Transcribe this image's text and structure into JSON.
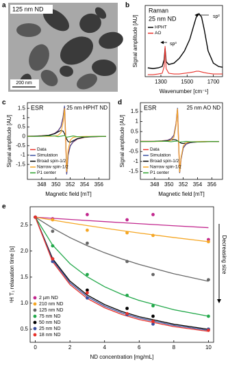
{
  "chart_data": [
    {
      "type": "image",
      "panel": "a",
      "title": "125 nm ND",
      "scale_bar": "200 nm"
    },
    {
      "type": "line",
      "panel": "b",
      "title": "Raman",
      "subtitle": "25 nm ND",
      "xlabel": "Wavenumber [cm⁻¹]",
      "ylabel": "Signal amplitude [AU]",
      "x": [
        1200,
        1240,
        1280,
        1310,
        1325,
        1332,
        1340,
        1360,
        1400,
        1440,
        1480,
        1520,
        1550,
        1570,
        1590,
        1610,
        1630,
        1660,
        1700,
        1740,
        1770
      ],
      "series": [
        {
          "name": "HPHT",
          "color": "#000000",
          "values": [
            0.13,
            0.12,
            0.13,
            0.15,
            0.25,
            0.42,
            0.22,
            0.18,
            0.2,
            0.27,
            0.38,
            0.55,
            0.75,
            0.88,
            0.93,
            0.88,
            0.7,
            0.38,
            0.2,
            0.15,
            0.14
          ]
        },
        {
          "name": "AO",
          "color": "#e8312a",
          "values": [
            0.03,
            0.03,
            0.04,
            0.05,
            0.15,
            0.45,
            0.12,
            0.05,
            0.04,
            0.04,
            0.05,
            0.06,
            0.07,
            0.08,
            0.08,
            0.07,
            0.06,
            0.05,
            0.04,
            0.04,
            0.04
          ]
        }
      ],
      "xlim": [
        1180,
        1770
      ],
      "ylim": [
        0,
        1.05
      ],
      "xticks": [
        1300,
        1500,
        1700
      ],
      "annotations": [
        "sp²",
        "sp³"
      ],
      "legend": "upper left"
    },
    {
      "type": "line",
      "panel": "c",
      "title": "ESR",
      "subtitle": "25 nm HPHT ND",
      "xlabel": "Magnetic field [mT]",
      "ylabel": "Signal amplitude [AU]",
      "x": [
        346,
        347,
        348,
        349,
        349.8,
        350.3,
        350.7,
        351,
        351.2,
        351.35,
        351.5,
        351.7,
        352,
        352.4,
        353,
        354,
        355,
        356,
        357
      ],
      "series": [
        {
          "name": "Data",
          "color": "#e8312a",
          "values": [
            0.01,
            0.01,
            0.03,
            0.06,
            0.15,
            0.3,
            0.52,
            1.02,
            1.6,
            0.02,
            -2.0,
            -1.0,
            -0.5,
            -0.3,
            -0.14,
            -0.05,
            -0.02,
            -0.01,
            0
          ]
        },
        {
          "name": "Simulation",
          "color": "#3a4fa0",
          "values": [
            0.006,
            0.012,
            0.024,
            0.06,
            0.152,
            0.294,
            0.52,
            1.02,
            1.64,
            0,
            -2.04,
            -1.02,
            -0.52,
            -0.294,
            -0.134,
            -0.045,
            -0.018,
            -0.009,
            -0.005
          ]
        },
        {
          "name": "Broad spin-1/2",
          "color": "#000000",
          "values": [
            0.006,
            0.011,
            0.022,
            0.055,
            0.134,
            0.238,
            0.32,
            0.278,
            0.143,
            0,
            -0.143,
            -0.278,
            -0.32,
            -0.238,
            -0.119,
            -0.041,
            -0.018,
            -0.009,
            -0.005
          ]
        },
        {
          "name": "Narrow spin-1/2",
          "color": "#f5a623",
          "values": [
            0,
            0.001,
            0.002,
            0.005,
            0.018,
            0.056,
            0.2,
            0.74,
            1.5,
            0,
            -1.9,
            -0.74,
            -0.2,
            -0.056,
            -0.015,
            -0.004,
            0,
            0,
            0
          ]
        },
        {
          "name": "P1 center",
          "color": "#2ca02c",
          "values": [
            0,
            0,
            0.01,
            0.03,
            0.02,
            -0.02,
            0.01,
            0.03,
            0.05,
            0,
            -0.05,
            -0.03,
            -0.01,
            0.02,
            -0.02,
            -0.03,
            -0.01,
            0,
            0
          ]
        }
      ],
      "xlim": [
        346,
        357.5
      ],
      "ylim": [
        -2.3,
        1.8
      ],
      "xticks": [
        348,
        350,
        352,
        354,
        356
      ],
      "yticks": [
        -1.5,
        -1,
        -0.5,
        0,
        0.5,
        1,
        1.5
      ],
      "legend": "lower left"
    },
    {
      "type": "line",
      "panel": "d",
      "title": "ESR",
      "subtitle": "25 nm AO ND",
      "xlabel": "Magnetic field [mT]",
      "ylabel": "Signal amplitude [AU]",
      "x": [
        346,
        347,
        348,
        349,
        349.8,
        350.3,
        350.7,
        351,
        351.2,
        351.35,
        351.5,
        351.7,
        352,
        352.4,
        353,
        354,
        355,
        356,
        357
      ],
      "series": [
        {
          "name": "Data",
          "color": "#e8312a",
          "values": [
            0.01,
            0.01,
            0.01,
            0.03,
            0.06,
            0.14,
            0.32,
            0.9,
            1.66,
            0.02,
            -1.55,
            -0.86,
            -0.32,
            -0.13,
            -0.05,
            -0.02,
            -0.01,
            0,
            0
          ]
        },
        {
          "name": "Simulation",
          "color": "#3a4fa0",
          "values": [
            0.002,
            0.004,
            0.009,
            0.023,
            0.06,
            0.13,
            0.32,
            0.9,
            1.69,
            0,
            -1.59,
            -0.88,
            -0.32,
            -0.13,
            -0.053,
            -0.016,
            -0.005,
            -0.003,
            -0.002
          ]
        },
        {
          "name": "Broad spin-1/2",
          "color": "#000000",
          "values": [
            0.002,
            0.004,
            0.007,
            0.017,
            0.04,
            0.07,
            0.1,
            0.08,
            0.04,
            0,
            -0.04,
            -0.08,
            -0.1,
            -0.07,
            -0.036,
            -0.012,
            -0.005,
            -0.003,
            -0.002
          ]
        },
        {
          "name": "Narrow spin-1/2",
          "color": "#f5a623",
          "values": [
            0,
            0,
            0.002,
            0.006,
            0.02,
            0.06,
            0.22,
            0.82,
            1.65,
            0,
            -1.55,
            -0.8,
            -0.22,
            -0.06,
            -0.017,
            -0.004,
            0,
            0,
            0
          ]
        },
        {
          "name": "P1 center",
          "color": "#2ca02c",
          "values": [
            0,
            0,
            0.01,
            0.02,
            0.01,
            -0.01,
            0.01,
            0.02,
            0.03,
            0,
            -0.03,
            -0.02,
            -0.01,
            0.01,
            -0.01,
            -0.02,
            -0.01,
            0,
            0
          ]
        }
      ],
      "xlim": [
        346,
        357.5
      ],
      "ylim": [
        -1.9,
        1.95
      ],
      "xticks": [
        348,
        350,
        352,
        354,
        356
      ],
      "yticks": [
        -1.5,
        -1,
        -0.5,
        0,
        0.5,
        1,
        1.5
      ],
      "legend": "lower left"
    },
    {
      "type": "scatter",
      "panel": "e",
      "xlabel": "ND concentration [mg/mL]",
      "ylabel": "¹H T₁ relaxation time [s]",
      "x": [
        0,
        1,
        3,
        5.3,
        6.8,
        10
      ],
      "fit_x": [
        0,
        1,
        2,
        3,
        4,
        5,
        6,
        8,
        10
      ],
      "series": [
        {
          "name": "2 µm ND",
          "color": "#c2278e",
          "values": [
            2.65,
            2.62,
            2.7,
            2.6,
            2.7,
            2.22
          ],
          "fit": [
            2.65,
            2.628,
            2.607,
            2.586,
            2.565,
            2.545,
            2.525,
            2.486,
            2.449
          ]
        },
        {
          "name": "210 nm ND",
          "color": "#f5a623",
          "values": [
            2.65,
            2.6,
            2.4,
            2.35,
            2.3,
            2.18
          ],
          "fit": [
            2.65,
            2.594,
            2.54,
            2.489,
            2.44,
            2.392,
            2.346,
            2.26,
            2.18
          ]
        },
        {
          "name": "125 nm ND",
          "color": "#666666",
          "values": [
            2.65,
            2.38,
            2.15,
            1.8,
            1.55,
            1.45
          ],
          "fit": [
            2.65,
            2.44,
            2.258,
            2.103,
            1.968,
            1.849,
            1.743,
            1.565,
            1.42
          ]
        },
        {
          "name": "75 nm ND",
          "color": "#22a84a",
          "values": [
            2.65,
            2.1,
            1.55,
            1.15,
            0.95,
            0.75
          ],
          "fit": [
            2.65,
            2.114,
            1.759,
            1.506,
            1.316,
            1.169,
            1.052,
            0.875,
            0.75
          ]
        },
        {
          "name": "50 nm ND",
          "color": "#000000",
          "values": [
            2.65,
            1.85,
            1.25,
            0.9,
            0.75,
            0.5
          ],
          "fit": [
            2.65,
            1.853,
            1.425,
            1.157,
            0.974,
            0.841,
            0.74,
            0.597,
            0.5
          ]
        },
        {
          "name": "25 nm ND",
          "color": "#3a4fa0",
          "values": [
            2.65,
            1.8,
            1.1,
            0.78,
            0.6,
            0.5
          ],
          "fit": [
            2.65,
            1.825,
            1.392,
            1.125,
            0.943,
            0.813,
            0.714,
            0.574,
            0.48
          ]
        },
        {
          "name": "18 nm ND",
          "color": "#e8312a",
          "values": [
            2.65,
            1.85,
            1.2,
            0.8,
            0.65,
            0.48
          ],
          "fit": [
            2.65,
            1.795,
            1.358,
            1.091,
            0.913,
            0.784,
            0.687,
            0.551,
            0.46
          ]
        }
      ],
      "xlim": [
        -0.3,
        10.3
      ],
      "ylim": [
        0.25,
        2.85
      ],
      "xticks": [
        0,
        2,
        4,
        6,
        8,
        10
      ],
      "yticks": [
        0.5,
        {
          "value": 1,
          "label": "1.0"
        },
        1.5,
        {
          "value": 2,
          "label": "2.0"
        },
        2.5
      ],
      "annotations": [
        "Decreasing size"
      ],
      "legend": "lower left"
    }
  ]
}
